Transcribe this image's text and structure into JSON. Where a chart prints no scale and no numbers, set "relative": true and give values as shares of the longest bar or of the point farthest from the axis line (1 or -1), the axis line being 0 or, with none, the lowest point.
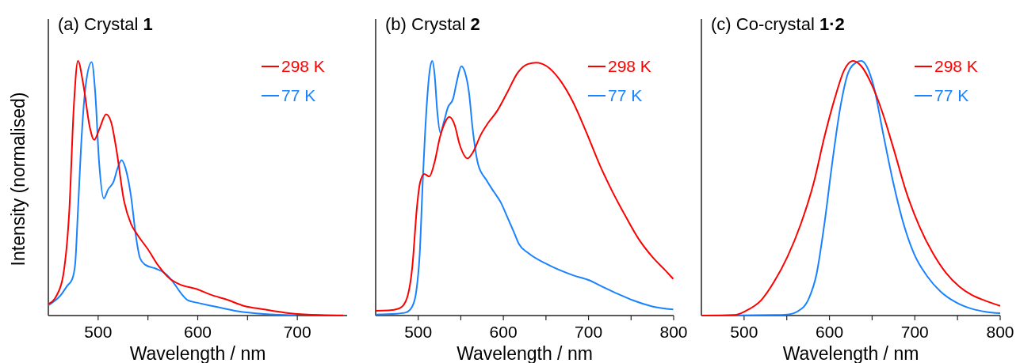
{
  "chart_data": [
    {
      "type": "line",
      "relative": true,
      "title": "(a) Crystal 1",
      "xlabel": "Wavelength / nm",
      "ylabel": "Intensity (normalised)",
      "xlim": [
        450,
        750
      ],
      "xticks": [
        500,
        {
          "value": 550,
          "label": null
        },
        600,
        {
          "value": 650,
          "label": null
        },
        700
      ],
      "legend": "top right",
      "tick_labels": "x",
      "series": [
        {
          "name": "298 K",
          "color": "#ff0000",
          "x": [
            450,
            458.5,
            465,
            471,
            475.7,
            479.7,
            485,
            491.6,
            496,
            501,
            508,
            513,
            518,
            526,
            533,
            539,
            550,
            560.6,
            571,
            582,
            599,
            613.6,
            629.6,
            645.5,
            666.7,
            688,
            706.5,
            746
          ],
          "values": [
            0.045,
            0.08,
            0.16,
            0.41,
            0.83,
            1.0,
            0.91,
            0.74,
            0.69,
            0.73,
            0.79,
            0.76,
            0.66,
            0.45,
            0.36,
            0.32,
            0.26,
            0.195,
            0.148,
            0.122,
            0.104,
            0.081,
            0.062,
            0.039,
            0.024,
            0.011,
            0.005,
            0.001
          ]
        },
        {
          "name": "77 K",
          "color": "#1a82ff",
          "x": [
            450,
            462.5,
            469,
            474,
            477,
            479.7,
            483.7,
            487.7,
            493.5,
            497,
            501,
            505.7,
            510,
            515.5,
            519.5,
            523.5,
            527.5,
            532.8,
            538,
            542,
            547,
            558,
            566,
            574,
            584.5,
            590,
            600,
            619,
            640,
            666.7,
            698.5
          ],
          "values": [
            0.04,
            0.08,
            0.117,
            0.143,
            0.205,
            0.41,
            0.72,
            0.91,
            0.995,
            0.88,
            0.6,
            0.46,
            0.495,
            0.526,
            0.578,
            0.61,
            0.578,
            0.474,
            0.31,
            0.226,
            0.2,
            0.184,
            0.169,
            0.138,
            0.081,
            0.06,
            0.05,
            0.034,
            0.017,
            0.006,
            0.001
          ]
        }
      ]
    },
    {
      "type": "line",
      "relative": true,
      "title": "(b) Crystal 2",
      "xlabel": "Wavelength / nm",
      "xlim": [
        450,
        800
      ],
      "xticks": [
        500,
        {
          "value": 550,
          "label": null
        },
        600,
        {
          "value": 650,
          "label": null
        },
        700,
        {
          "value": 750,
          "label": null
        },
        800
      ],
      "legend": "top right",
      "tick_labels": "x",
      "series": [
        {
          "name": "298 K",
          "color": "#ff0000",
          "x": [
            450,
            465,
            477.6,
            485.3,
            493,
            498.6,
            502,
            507,
            513,
            519,
            525.5,
            531.7,
            536.4,
            542.6,
            548.8,
            558,
            564,
            573.5,
            582.8,
            592,
            604.5,
            616.9,
            629,
            638.5,
            651,
            666.4,
            682,
            697.4,
            713,
            728.3,
            743.8,
            759,
            774.8,
            790,
            799.5
          ],
          "values": [
            0.019,
            0.02,
            0.028,
            0.056,
            0.19,
            0.43,
            0.52,
            0.556,
            0.546,
            0.6,
            0.7,
            0.76,
            0.78,
            0.75,
            0.67,
            0.617,
            0.64,
            0.71,
            0.76,
            0.8,
            0.876,
            0.954,
            0.988,
            0.993,
            0.979,
            0.925,
            0.837,
            0.72,
            0.593,
            0.485,
            0.388,
            0.3,
            0.231,
            0.178,
            0.144
          ]
        },
        {
          "name": "77 K",
          "color": "#1a82ff",
          "x": [
            450,
            474.5,
            485.3,
            493,
            497.7,
            501.7,
            505.4,
            510,
            514,
            516.6,
            519.3,
            522.4,
            526,
            530,
            534.8,
            541,
            545.7,
            550.6,
            555,
            559.6,
            564,
            570.4,
            579.7,
            589,
            596.7,
            604.5,
            612.2,
            618.4,
            629,
            651,
            682,
            700.5,
            716,
            734.5,
            753,
            774.8,
            799.5
          ],
          "values": [
            0.004,
            0.007,
            0.012,
            0.036,
            0.095,
            0.24,
            0.534,
            0.827,
            0.974,
            1.0,
            0.944,
            0.8,
            0.718,
            0.759,
            0.817,
            0.852,
            0.925,
            0.979,
            0.954,
            0.876,
            0.73,
            0.593,
            0.534,
            0.485,
            0.446,
            0.388,
            0.329,
            0.28,
            0.246,
            0.202,
            0.158,
            0.139,
            0.114,
            0.085,
            0.059,
            0.036,
            0.024
          ]
        }
      ]
    },
    {
      "type": "line",
      "relative": true,
      "title": "(c) Co-crystal 1·2",
      "xlabel": "Wavelength / nm",
      "xlim": [
        450,
        800
      ],
      "xticks": [
        500,
        {
          "value": 550,
          "label": null
        },
        600,
        {
          "value": 650,
          "label": null
        },
        700,
        {
          "value": 750,
          "label": null
        },
        800
      ],
      "legend": "top right",
      "tick_labels": "x",
      "series": [
        {
          "name": "298 K",
          "color": "#ff0000",
          "x": [
            450,
            489,
            501.3,
            520,
            535.4,
            550.8,
            566.3,
            581.8,
            594,
            606.5,
            617.3,
            627.5,
            637.4,
            649.8,
            662,
            674.6,
            690,
            705.5,
            721,
            736.4,
            752,
            767,
            782.8,
            800
          ],
          "values": [
            0,
            0.002,
            0.017,
            0.06,
            0.134,
            0.231,
            0.358,
            0.524,
            0.7,
            0.856,
            0.964,
            1.0,
            0.979,
            0.905,
            0.798,
            0.661,
            0.485,
            0.349,
            0.246,
            0.168,
            0.114,
            0.08,
            0.058,
            0.038
          ]
        },
        {
          "name": "77 K",
          "color": "#1a82ff",
          "x": [
            450,
            535.4,
            550.8,
            563,
            575.6,
            584.9,
            594,
            603.4,
            612.7,
            622,
            631,
            637.4,
            643.6,
            652.9,
            662,
            674.6,
            687,
            699.3,
            714.8,
            730,
            748.8,
            767.4,
            782.8,
            800
          ],
          "values": [
            0,
            0.002,
            0.004,
            0.017,
            0.065,
            0.163,
            0.358,
            0.603,
            0.817,
            0.954,
            0.993,
            1.0,
            0.979,
            0.886,
            0.73,
            0.524,
            0.358,
            0.241,
            0.153,
            0.095,
            0.051,
            0.026,
            0.015,
            0.009
          ]
        }
      ]
    }
  ]
}
